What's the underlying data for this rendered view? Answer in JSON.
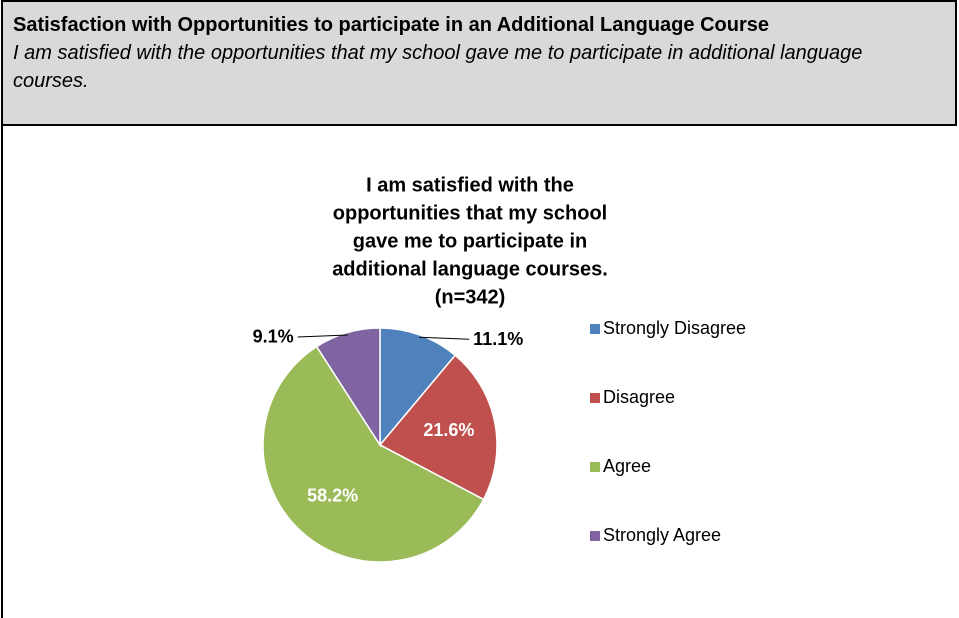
{
  "header": {
    "title": "Satisfaction with Opportunities to participate in an Additional Language Course",
    "subtitle": "I am satisfied with the opportunities that my school gave me to participate in additional language courses."
  },
  "chart_data": {
    "type": "pie",
    "title": [
      "I am satisfied with the",
      "opportunities that my school",
      "gave me to participate in",
      "additional language courses.",
      "(n=342)"
    ],
    "categories": [
      "Strongly Disagree",
      "Disagree",
      "Agree",
      "Strongly Agree"
    ],
    "values": [
      11.1,
      21.6,
      58.2,
      9.1
    ],
    "value_labels": [
      "11.1%",
      "21.6%",
      "58.2%",
      "9.1%"
    ],
    "colors": [
      "#4f81bd",
      "#c0504d",
      "#9bbb59",
      "#8064a2"
    ],
    "legend": "right"
  }
}
